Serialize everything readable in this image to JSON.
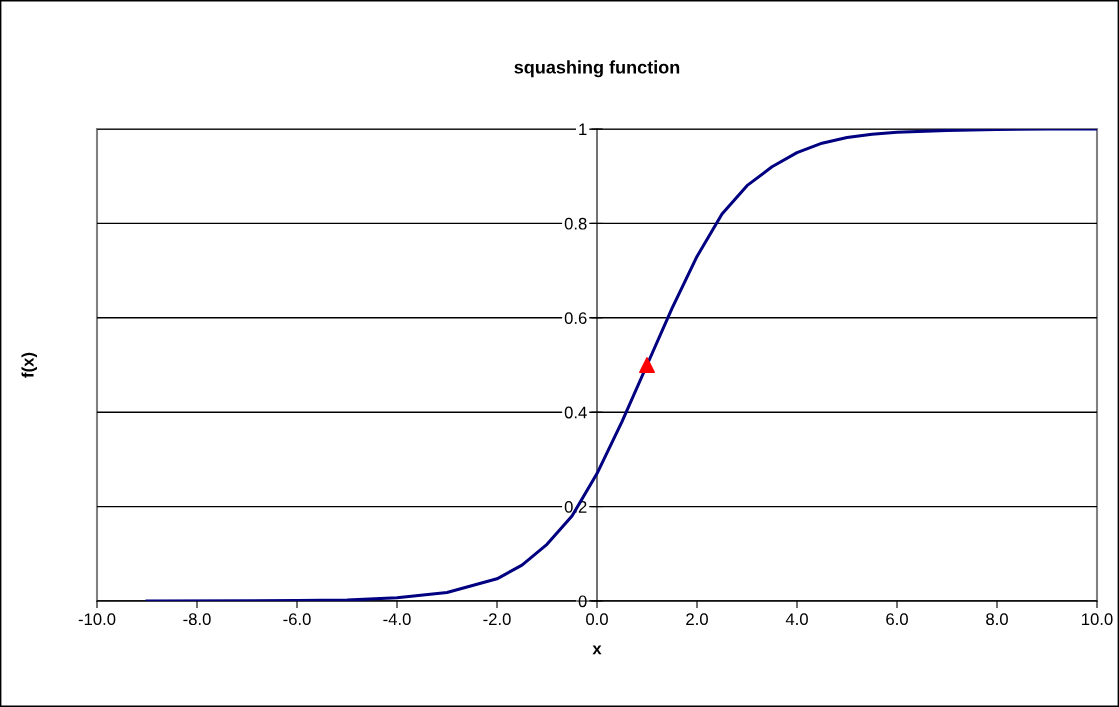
{
  "chart_data": {
    "type": "line",
    "title": "squashing function",
    "xlabel": "x",
    "ylabel": "f(x)",
    "xlim": [
      -10,
      10
    ],
    "xticks": [
      {
        "value": -10,
        "label": "-10.0"
      },
      {
        "value": -8,
        "label": "-8.0"
      },
      {
        "value": -6,
        "label": "-6.0"
      },
      {
        "value": -4,
        "label": "-4.0"
      },
      {
        "value": -2,
        "label": "-2.0"
      },
      {
        "value": 0,
        "label": "0.0"
      },
      {
        "value": 2,
        "label": "2.0"
      },
      {
        "value": 4,
        "label": "4.0"
      },
      {
        "value": 6,
        "label": "6.0"
      },
      {
        "value": 8,
        "label": "8.0"
      },
      {
        "value": 10,
        "label": "10.0"
      }
    ],
    "ylim": [
      0,
      1
    ],
    "yticks": [
      0,
      0.2,
      0.4,
      0.6,
      0.8,
      1
    ],
    "grid": "y",
    "legend": false,
    "series": [
      {
        "color": "#000080",
        "marker": "none",
        "x": [
          -9,
          -6,
          -5,
          -4,
          -3,
          -2,
          -1.5,
          -1,
          -0.5,
          0,
          0.5,
          1,
          1.5,
          2,
          2.5,
          3,
          3.5,
          4,
          4.5,
          5,
          5.5,
          6,
          7,
          8,
          9,
          10
        ],
        "values": [
          0,
          0.001,
          0.002,
          0.007,
          0.018,
          0.047,
          0.076,
          0.12,
          0.18,
          0.27,
          0.38,
          0.5,
          0.62,
          0.73,
          0.82,
          0.88,
          0.92,
          0.95,
          0.97,
          0.982,
          0.989,
          0.993,
          0.997,
          0.999,
          1,
          1
        ]
      },
      {
        "type": "scatter",
        "color": "#ff0000",
        "marker": "triangle",
        "x": [
          1
        ],
        "values": [
          0.5
        ]
      }
    ]
  }
}
